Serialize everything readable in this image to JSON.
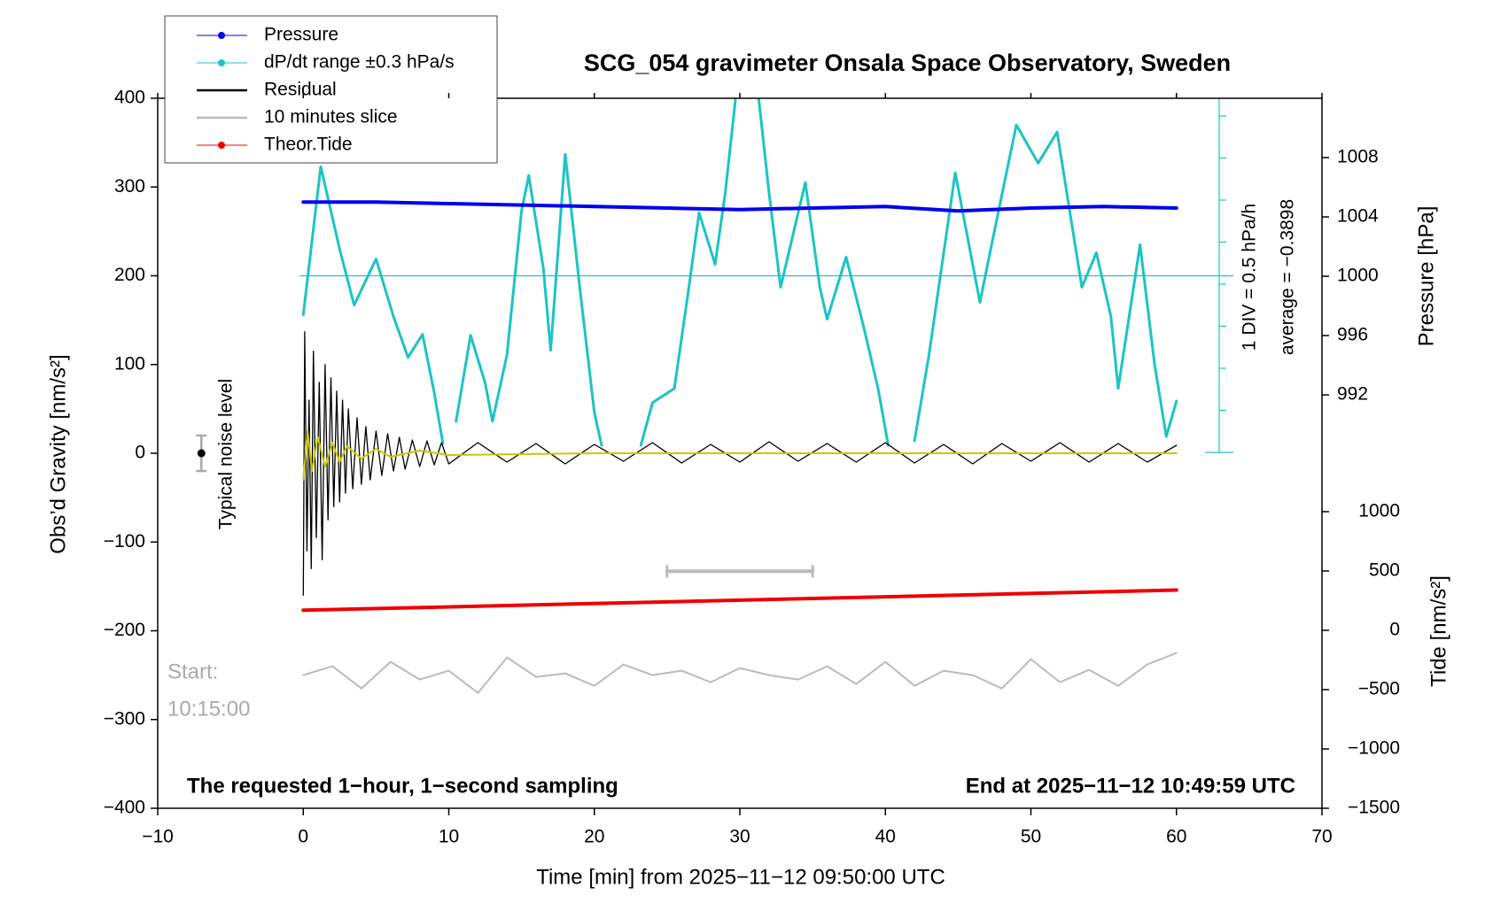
{
  "chart_data": {
    "type": "line",
    "title": "SCG_054 gravimeter Onsala Space Observatory, Sweden",
    "x_label": "Time [min] from 2025−11−12 09:50:00 UTC",
    "y_label": "Obs’d Gravity [nm/s²]",
    "y2_label": "Pressure [hPa]",
    "y3_label": "Tide [nm/s²]",
    "xlim": [
      -10,
      70
    ],
    "xticks": [
      {
        "value": -10,
        "label": "−10"
      },
      0,
      10,
      20,
      30,
      40,
      50,
      60,
      70
    ],
    "ylim": [
      -400,
      400
    ],
    "yticks": [
      {
        "value": -400,
        "label": "−400"
      },
      {
        "value": -300,
        "label": "−300"
      },
      {
        "value": -200,
        "label": "−200"
      },
      {
        "value": -100,
        "label": "−100"
      },
      0,
      100,
      200,
      300,
      400
    ],
    "y2lim": [
      964.13,
      1012
    ],
    "y2ticks": [
      992,
      996,
      1000,
      1004,
      1008
    ],
    "y3lim": [
      -1500,
      4484
    ],
    "y3ticks": [
      {
        "value": -1500,
        "label": "−1500"
      },
      {
        "value": -1000,
        "label": "−1000"
      },
      {
        "value": -500,
        "label": "−500"
      },
      0,
      500,
      1000
    ],
    "legend": "upper left",
    "reference_line": 200,
    "annotations": [
      "1 DIV = 0.5 hPa/h",
      "average = −0.3898",
      "Start:",
      "10:15:00",
      "The requested 1−hour, 1−second sampling",
      "End at 2025−11−12 10:49:59 UTC"
    ],
    "noise_level": {
      "label": "Typical noise level",
      "x": -7,
      "value": 0,
      "error": 20
    },
    "series": [
      {
        "name": "Pressure",
        "color": "#0000ee",
        "axis": "y2",
        "width": 4,
        "markers": true,
        "x": [
          0,
          5,
          10,
          15,
          20,
          25,
          30,
          35,
          40,
          45,
          50,
          55,
          60
        ],
        "values": [
          1005,
          1005,
          1004.9,
          1004.8,
          1004.7,
          1004.6,
          1004.5,
          1004.6,
          1004.7,
          1004.4,
          1004.6,
          1004.7,
          1004.6
        ]
      },
      {
        "name": "dP/dt range ±0.3 hPa/s",
        "color": "#1cc4c4",
        "width": 3,
        "markers": true,
        "x": [
          0,
          1.2,
          2.5,
          3.5,
          5,
          6.2,
          7.2,
          8.2,
          9,
          9.6,
          9.9,
          10.5,
          11.5,
          12.5,
          13,
          14,
          15,
          15.5,
          16.5,
          17,
          18,
          19,
          20,
          20.5,
          21.8,
          23.2,
          24,
          25.5,
          26.5,
          27.2,
          28.3,
          29,
          29.7,
          30.5,
          31.3,
          32,
          32.8,
          34.5,
          35.5,
          36,
          37.3,
          38.5,
          39.5,
          40.2,
          41,
          42,
          43,
          44.8,
          46.5,
          47.5,
          49,
          50.5,
          51.8,
          53.5,
          54.5,
          55.5,
          56,
          57.5,
          58.5,
          59.3,
          60
        ],
        "values": [
          156,
          323,
          230,
          167,
          219,
          154,
          108,
          134,
          68,
          11,
          null,
          36,
          133,
          79,
          36,
          111,
          273,
          313,
          208,
          116,
          337,
          187,
          46,
          9,
          null,
          9,
          57,
          73,
          187,
          271,
          213,
          294,
          399,
          null,
          399,
          294,
          187,
          305,
          187,
          151,
          221,
          143,
          73,
          9,
          null,
          14,
          111,
          316,
          170,
          251,
          370,
          327,
          362,
          187,
          226,
          154,
          73,
          235,
          100,
          19,
          59
        ]
      },
      {
        "name": "Residual",
        "color": "#000000",
        "width": 1.3,
        "markers": false,
        "x": [
          0,
          0.1,
          0.25,
          0.4,
          0.55,
          0.7,
          0.9,
          1.1,
          1.3,
          1.5,
          1.7,
          1.9,
          2.1,
          2.3,
          2.5,
          2.7,
          2.9,
          3.1,
          3.4,
          3.7,
          4,
          4.3,
          4.6,
          5,
          5.4,
          5.8,
          6.2,
          6.6,
          7,
          7.5,
          8,
          8.5,
          9,
          9.5,
          10,
          12,
          14,
          16,
          18,
          20,
          22,
          24,
          26,
          28,
          30,
          32,
          34,
          36,
          38,
          40,
          42,
          44,
          46,
          48,
          50,
          52,
          54,
          56,
          58,
          60
        ],
        "values": [
          -160,
          137,
          -110,
          60,
          -130,
          115,
          -95,
          80,
          -120,
          100,
          -75,
          85,
          -60,
          70,
          -55,
          60,
          -45,
          50,
          -40,
          40,
          -35,
          30,
          -30,
          25,
          -25,
          22,
          -20,
          18,
          -18,
          15,
          -15,
          14,
          -13,
          12,
          -12,
          12,
          -10,
          11,
          -12,
          10,
          -9,
          12,
          -11,
          10,
          -10,
          13,
          -9,
          11,
          -10,
          12,
          -11,
          10,
          -12,
          11,
          -9,
          12,
          -10,
          11,
          -10,
          9
        ]
      },
      {
        "name": "10 minutes slice",
        "color": "#bbbbbb",
        "width": 4,
        "markers": false,
        "caps": true,
        "x": [
          25,
          35
        ],
        "values": [
          -133,
          -133
        ]
      },
      {
        "name": "Theor.Tide",
        "color": "#ee0000",
        "axis": "y3",
        "width": 4,
        "markers": true,
        "x": [
          0,
          60
        ],
        "values": [
          169,
          339
        ]
      },
      {
        "color": "#c8c800",
        "width": 2,
        "markers": false,
        "x": [
          0,
          0.3,
          0.6,
          1,
          1.5,
          2,
          2.5,
          3,
          4,
          5,
          6,
          8,
          10,
          20,
          30,
          40,
          50,
          60
        ],
        "values": [
          -30,
          25,
          -20,
          18,
          -15,
          12,
          -10,
          8,
          -6,
          5,
          -4,
          3,
          -2,
          0,
          0,
          0,
          0,
          0
        ]
      },
      {
        "color": "#bbbbbb",
        "width": 2,
        "markers": false,
        "x": [
          0,
          2,
          4,
          6,
          8,
          10,
          12,
          14,
          16,
          18,
          20,
          22,
          24,
          26,
          28,
          30,
          32,
          34,
          36,
          38,
          40,
          42,
          44,
          46,
          48,
          50,
          52,
          54,
          56,
          58,
          60
        ],
        "values": [
          -250,
          -240,
          -265,
          -235,
          -255,
          -245,
          -270,
          -230,
          -252,
          -248,
          -262,
          -238,
          -250,
          -245,
          -258,
          -242,
          -250,
          -255,
          -240,
          -260,
          -235,
          -262,
          -245,
          -250,
          -265,
          -232,
          -258,
          -244,
          -262,
          -238,
          -225
        ]
      }
    ]
  }
}
